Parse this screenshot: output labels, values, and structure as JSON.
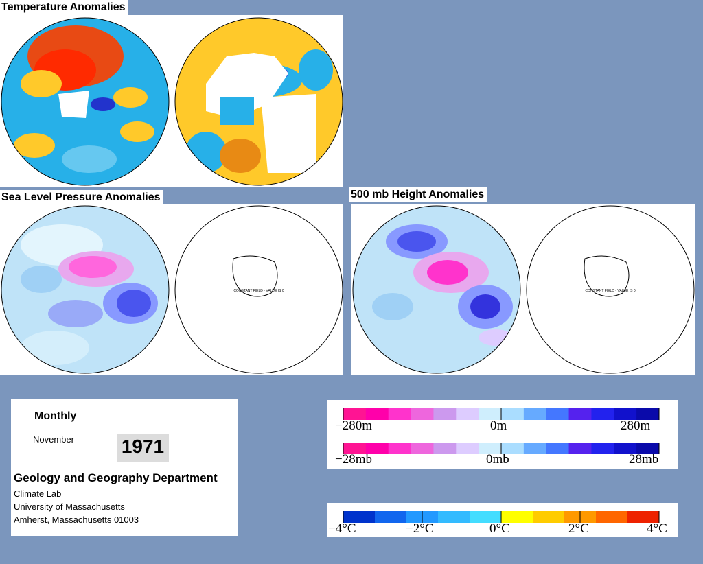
{
  "titles": {
    "temperature": "Temperature Anomalies",
    "slp": "Sea Level Pressure Anomalies",
    "height": "500 mb Height Anomalies"
  },
  "map_notes": {
    "slp_sh": "CONSTANT FIELD - VALUE IS 0",
    "height_sh": "CONSTANT FIELD - VALUE IS 0"
  },
  "info": {
    "period": "Monthly",
    "month": "November",
    "year": "1971",
    "department": "Geology and Geography Department",
    "lines": [
      "Climate Lab",
      "University of Massachusetts",
      "Amherst, Massachusetts 01003"
    ]
  },
  "legend_height": {
    "labels": [
      "−280m",
      "0m",
      "280m"
    ],
    "colors": [
      "#ff1493",
      "#ff00aa",
      "#ff33cc",
      "#ee66dd",
      "#cc99ee",
      "#ddccff",
      "#cfeefd",
      "#aaddff",
      "#66aaff",
      "#4477ff",
      "#5522ee",
      "#2222ee",
      "#1111cc",
      "#0a0aaa"
    ]
  },
  "legend_pressure": {
    "labels": [
      "−28mb",
      "0mb",
      "28mb"
    ],
    "colors": [
      "#ff1493",
      "#ff00aa",
      "#ff33cc",
      "#ee66dd",
      "#cc99ee",
      "#ddccff",
      "#cfeefd",
      "#aaddff",
      "#66aaff",
      "#4477ff",
      "#5522ee",
      "#2222ee",
      "#1111cc",
      "#0a0aaa"
    ]
  },
  "legend_temperature": {
    "labels": [
      "−4°C",
      "−2°C",
      "0°C",
      "2°C",
      "4°C"
    ],
    "colors": [
      "#0033cc",
      "#1166ee",
      "#2299ff",
      "#33bbff",
      "#44ddff",
      "#ffff00",
      "#ffcc00",
      "#ff9900",
      "#ff6600",
      "#ee2200"
    ]
  },
  "colors": {
    "background": "#7b96bd",
    "temp_warm": "#e84a14",
    "temp_cool": "#27b0e8",
    "temp_neutral": "#ffc92a",
    "anom_base": "#bfe3f8",
    "anom_pink": "#ff33cc",
    "anom_blue": "#4a55ee"
  }
}
